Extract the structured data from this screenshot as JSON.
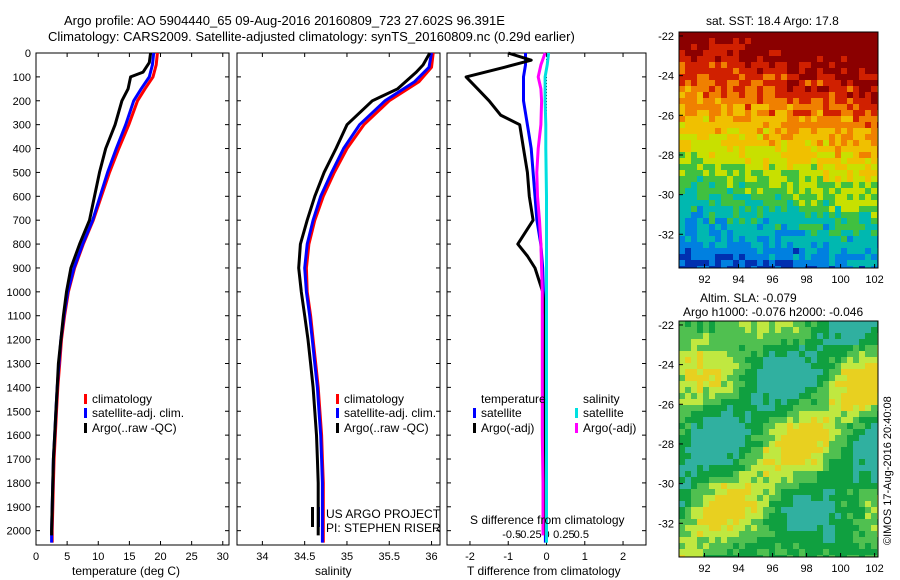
{
  "header": {
    "line1": "Argo profile: AO 5904440_65 09-Aug-2016 20160809_723 27.602S 96.391E",
    "line2": "Climatology: CARS2009. Satellite-adjusted climatology: synTS_20160809.nc (0.29d earlier)"
  },
  "legend_main": {
    "climatology": "climatology",
    "satellite": "satellite-adj. clim.",
    "argo": "Argo(..raw -QC)"
  },
  "legend_diff": {
    "temperature_header": "temperature",
    "salinity_header": "salinity",
    "t_satellite": "satellite",
    "t_argo": "Argo(-adj)",
    "s_satellite": "satellite",
    "s_argo": "Argo(-adj)"
  },
  "project": {
    "line1": "US ARGO PROJECT",
    "line2": "PI: STEPHEN RISER"
  },
  "maps": {
    "sst_title": "sat. SST: 18.4  Argo: 17.8",
    "sla_title1": "Altim. SLA: -0.079",
    "sla_title2": "Argo h1000: -0.076 h2000: -0.046",
    "lat_ticks": [
      "-22",
      "-24",
      "-26",
      "-28",
      "-30",
      "-32"
    ],
    "lon_ticks": [
      "92",
      "94",
      "96",
      "98",
      "100",
      "102"
    ],
    "sst_colors": [
      "#8b0000",
      "#d02000",
      "#f08000",
      "#f0c000",
      "#c8e000",
      "#40c040",
      "#00b8b0",
      "#0080e0",
      "#0030b0"
    ],
    "sla_colors": [
      "#10a040",
      "#50c050",
      "#c0e840",
      "#e8d020",
      "#30b0a0"
    ]
  },
  "copyright": "©IMOS 17-Aug-2016 20:40:08",
  "colors": {
    "climatology": "#ff0000",
    "satellite": "#0000ff",
    "argo": "#000000",
    "s_satellite": "#00e0e0",
    "s_argo": "#ff00ff"
  },
  "chart_data": [
    {
      "type": "line",
      "xlabel": "temperature (deg C)",
      "ylabel": "",
      "xlim": [
        0,
        31
      ],
      "ylim": [
        2060,
        0
      ],
      "xticks": [
        0,
        5,
        10,
        15,
        20,
        25,
        30
      ],
      "yticks": [
        0,
        100,
        200,
        300,
        400,
        500,
        600,
        700,
        800,
        900,
        1000,
        1100,
        1200,
        1300,
        1400,
        1500,
        1600,
        1700,
        1800,
        1900,
        2000
      ],
      "series": [
        {
          "name": "climatology",
          "color": "#ff0000",
          "points": [
            [
              19.5,
              0
            ],
            [
              19.3,
              50
            ],
            [
              18.8,
              100
            ],
            [
              17.5,
              150
            ],
            [
              16.3,
              200
            ],
            [
              14.9,
              300
            ],
            [
              13.3,
              400
            ],
            [
              11.8,
              500
            ],
            [
              10.5,
              600
            ],
            [
              9.2,
              700
            ],
            [
              7.6,
              800
            ],
            [
              6.2,
              900
            ],
            [
              5.2,
              1000
            ],
            [
              4.6,
              1100
            ],
            [
              4.1,
              1200
            ],
            [
              3.8,
              1300
            ],
            [
              3.5,
              1400
            ],
            [
              3.3,
              1500
            ],
            [
              3.1,
              1600
            ],
            [
              2.9,
              1700
            ],
            [
              2.8,
              1800
            ],
            [
              2.7,
              1900
            ],
            [
              2.6,
              2000
            ],
            [
              2.6,
              2050
            ]
          ]
        },
        {
          "name": "satellite-adj. clim.",
          "color": "#0000ff",
          "points": [
            [
              18.9,
              0
            ],
            [
              18.7,
              50
            ],
            [
              18.2,
              100
            ],
            [
              16.9,
              150
            ],
            [
              15.7,
              200
            ],
            [
              14.4,
              300
            ],
            [
              12.9,
              400
            ],
            [
              11.5,
              500
            ],
            [
              10.3,
              600
            ],
            [
              9.1,
              700
            ],
            [
              7.5,
              800
            ],
            [
              6.1,
              900
            ],
            [
              5.1,
              1000
            ],
            [
              4.5,
              1100
            ],
            [
              4.0,
              1200
            ],
            [
              3.7,
              1300
            ],
            [
              3.4,
              1400
            ],
            [
              3.2,
              1500
            ],
            [
              3.0,
              1600
            ],
            [
              2.8,
              1700
            ],
            [
              2.7,
              1800
            ],
            [
              2.6,
              1900
            ],
            [
              2.5,
              2000
            ],
            [
              2.5,
              2050
            ]
          ]
        },
        {
          "name": "Argo(..raw -QC)",
          "color": "#000000",
          "points": [
            [
              18.4,
              0
            ],
            [
              18.2,
              40
            ],
            [
              17.2,
              80
            ],
            [
              15.2,
              100
            ],
            [
              14.8,
              150
            ],
            [
              13.8,
              200
            ],
            [
              12.7,
              300
            ],
            [
              11.2,
              400
            ],
            [
              10.2,
              500
            ],
            [
              9.4,
              600
            ],
            [
              8.6,
              700
            ],
            [
              7.0,
              800
            ],
            [
              5.6,
              900
            ],
            [
              4.9,
              1000
            ],
            [
              4.4,
              1100
            ],
            [
              4.0,
              1200
            ],
            [
              3.6,
              1300
            ],
            [
              3.4,
              1400
            ],
            [
              3.2,
              1500
            ],
            [
              3.0,
              1600
            ],
            [
              2.8,
              1700
            ],
            [
              2.7,
              1800
            ],
            [
              2.6,
              1900
            ],
            [
              2.5,
              2000
            ],
            [
              2.5,
              2020
            ]
          ]
        }
      ]
    },
    {
      "type": "line",
      "xlabel": "salinity",
      "ylabel": "",
      "xlim": [
        33.7,
        36.1
      ],
      "ylim": [
        2060,
        0
      ],
      "xticks": [
        34,
        34.5,
        35,
        35.5,
        36
      ],
      "xticklabels": [
        "34",
        "34.5",
        "35",
        "35.5",
        "36"
      ],
      "series": [
        {
          "name": "climatology",
          "color": "#ff0000",
          "points": [
            [
              36.02,
              0
            ],
            [
              36.0,
              60
            ],
            [
              35.85,
              120
            ],
            [
              35.5,
              200
            ],
            [
              35.2,
              300
            ],
            [
              35.0,
              400
            ],
            [
              34.85,
              500
            ],
            [
              34.72,
              600
            ],
            [
              34.62,
              700
            ],
            [
              34.55,
              800
            ],
            [
              34.52,
              900
            ],
            [
              34.53,
              1000
            ],
            [
              34.57,
              1100
            ],
            [
              34.6,
              1200
            ],
            [
              34.63,
              1300
            ],
            [
              34.66,
              1400
            ],
            [
              34.68,
              1500
            ],
            [
              34.7,
              1600
            ],
            [
              34.71,
              1700
            ],
            [
              34.72,
              1800
            ],
            [
              34.72,
              1900
            ],
            [
              34.72,
              2000
            ],
            [
              34.72,
              2050
            ]
          ]
        },
        {
          "name": "satellite-adj. clim.",
          "color": "#0000ff",
          "points": [
            [
              36.0,
              0
            ],
            [
              35.97,
              60
            ],
            [
              35.8,
              120
            ],
            [
              35.45,
              200
            ],
            [
              35.15,
              300
            ],
            [
              34.96,
              400
            ],
            [
              34.82,
              500
            ],
            [
              34.69,
              600
            ],
            [
              34.6,
              700
            ],
            [
              34.53,
              800
            ],
            [
              34.5,
              900
            ],
            [
              34.52,
              1000
            ],
            [
              34.56,
              1100
            ],
            [
              34.59,
              1200
            ],
            [
              34.62,
              1300
            ],
            [
              34.65,
              1400
            ],
            [
              34.67,
              1500
            ],
            [
              34.69,
              1600
            ],
            [
              34.7,
              1700
            ],
            [
              34.71,
              1800
            ],
            [
              34.71,
              1900
            ],
            [
              34.71,
              2000
            ],
            [
              34.71,
              2050
            ]
          ]
        },
        {
          "name": "Argo(..raw -QC)",
          "color": "#000000",
          "points": [
            [
              35.98,
              0
            ],
            [
              35.9,
              50
            ],
            [
              35.82,
              80
            ],
            [
              35.6,
              150
            ],
            [
              35.3,
              200
            ],
            [
              35.0,
              300
            ],
            [
              34.87,
              400
            ],
            [
              34.73,
              500
            ],
            [
              34.62,
              600
            ],
            [
              34.53,
              700
            ],
            [
              34.45,
              800
            ],
            [
              34.43,
              900
            ],
            [
              34.46,
              1000
            ],
            [
              34.5,
              1100
            ],
            [
              34.54,
              1200
            ],
            [
              34.57,
              1300
            ],
            [
              34.6,
              1400
            ],
            [
              34.62,
              1500
            ],
            [
              34.64,
              1600
            ],
            [
              34.65,
              1700
            ],
            [
              34.66,
              1800
            ],
            [
              34.66,
              1900
            ],
            [
              34.66,
              2000
            ],
            [
              34.66,
              2020
            ]
          ]
        }
      ]
    },
    {
      "type": "line",
      "xlabel": "T difference from climatology",
      "x2label": "S difference from climatology",
      "ylabel": "",
      "xlim": [
        -2.6,
        2.6
      ],
      "ylim": [
        2060,
        0
      ],
      "xticks": [
        -2,
        -1,
        0,
        1,
        2
      ],
      "x2ticks": [
        -0.5,
        -0.25,
        0,
        0.25,
        0.5
      ],
      "x2ticklabels": [
        "-0.5",
        "-0.25",
        "0",
        "0.25",
        "0.5"
      ],
      "zero_line": true,
      "series": [
        {
          "name": "temperature satellite",
          "color": "#0000ff",
          "points": [
            [
              -0.55,
              0
            ],
            [
              -0.55,
              50
            ],
            [
              -0.6,
              100
            ],
            [
              -0.6,
              200
            ],
            [
              -0.5,
              300
            ],
            [
              -0.4,
              400
            ],
            [
              -0.35,
              500
            ],
            [
              -0.3,
              600
            ],
            [
              -0.25,
              700
            ],
            [
              -0.15,
              800
            ],
            [
              -0.1,
              900
            ],
            [
              -0.08,
              1000
            ],
            [
              -0.06,
              1100
            ],
            [
              -0.05,
              1300
            ],
            [
              -0.04,
              1500
            ],
            [
              -0.03,
              1700
            ],
            [
              -0.03,
              1900
            ],
            [
              -0.03,
              2050
            ]
          ]
        },
        {
          "name": "temperature Argo(-adj)",
          "color": "#000000",
          "points": [
            [
              -1.0,
              0
            ],
            [
              -0.4,
              30
            ],
            [
              -1.1,
              60
            ],
            [
              -2.1,
              100
            ],
            [
              -1.8,
              150
            ],
            [
              -1.5,
              200
            ],
            [
              -1.2,
              260
            ],
            [
              -0.7,
              300
            ],
            [
              -0.6,
              400
            ],
            [
              -0.5,
              500
            ],
            [
              -0.45,
              600
            ],
            [
              -0.35,
              700
            ],
            [
              -0.75,
              800
            ],
            [
              -0.5,
              850
            ],
            [
              -0.3,
              900
            ],
            [
              -0.1,
              1000
            ],
            [
              -0.03,
              1100
            ],
            [
              -0.04,
              1300
            ],
            [
              -0.03,
              1500
            ],
            [
              -0.03,
              1700
            ],
            [
              -0.02,
              1900
            ],
            [
              -0.02,
              2020
            ]
          ]
        },
        {
          "name": "salinity satellite",
          "color": "#00e0e0",
          "points": [
            [
              0.03,
              0
            ],
            [
              0.01,
              50
            ],
            [
              -0.02,
              100
            ],
            [
              -0.02,
              200
            ],
            [
              -0.01,
              300
            ],
            [
              -0.01,
              400
            ],
            [
              0.0,
              600
            ],
            [
              0.0,
              800
            ],
            [
              0.0,
              1000
            ],
            [
              0.0,
              1200
            ],
            [
              0.0,
              1500
            ],
            [
              0.0,
              1800
            ],
            [
              0.0,
              2050
            ]
          ]
        },
        {
          "name": "salinity Argo(-adj)",
          "color": "#ff00ff",
          "points": [
            [
              -0.02,
              0
            ],
            [
              -0.08,
              50
            ],
            [
              -0.12,
              100
            ],
            [
              -0.08,
              150
            ],
            [
              -0.07,
              200
            ],
            [
              -0.08,
              300
            ],
            [
              -0.12,
              400
            ],
            [
              -0.14,
              500
            ],
            [
              -0.13,
              600
            ],
            [
              -0.1,
              700
            ],
            [
              -0.08,
              800
            ],
            [
              -0.07,
              900
            ],
            [
              -0.06,
              1000
            ],
            [
              -0.06,
              1200
            ],
            [
              -0.06,
              1400
            ],
            [
              -0.06,
              1600
            ],
            [
              -0.05,
              1800
            ],
            [
              -0.05,
              1900
            ],
            [
              -0.05,
              2020
            ]
          ]
        }
      ]
    }
  ]
}
